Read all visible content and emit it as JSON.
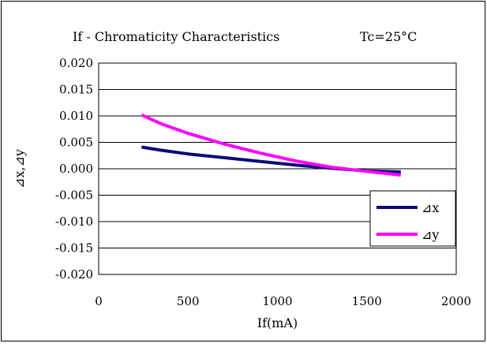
{
  "chart_data": {
    "type": "line",
    "title": "If - Chromaticity Characteristics",
    "condition": "Tc=25°C",
    "xlabel": "If(mA)",
    "ylabel": "⊿x,⊿y",
    "xlim": [
      0,
      2000
    ],
    "ylim": [
      -0.02,
      0.02
    ],
    "x_ticks": [
      0,
      500,
      1000,
      1500,
      2000
    ],
    "y_ticks": [
      0.02,
      0.015,
      0.01,
      0.005,
      0.0,
      -0.005,
      -0.01,
      -0.015,
      -0.02
    ],
    "x_tick_labels": [
      "0",
      "500",
      "1000",
      "1500",
      "2000"
    ],
    "y_tick_labels": [
      "0.020",
      "0.015",
      "0.010",
      "0.005",
      "0.000",
      "-0.005",
      "-0.010",
      "-0.015",
      "-0.020"
    ],
    "grid": "horizontal",
    "legend_position": "right",
    "series": [
      {
        "name": "⊿x",
        "color": "#0a0a78",
        "x": [
          240,
          350,
          500,
          700,
          900,
          1100,
          1300,
          1500,
          1690
        ],
        "y": [
          0.0041,
          0.0035,
          0.0028,
          0.0021,
          0.0014,
          0.0007,
          0.0001,
          -0.0004,
          -0.0006
        ]
      },
      {
        "name": "⊿y",
        "color": "#ff00ff",
        "x": [
          240,
          350,
          500,
          700,
          900,
          1100,
          1300,
          1500,
          1690
        ],
        "y": [
          0.0102,
          0.0085,
          0.0067,
          0.0047,
          0.003,
          0.0015,
          0.0003,
          -0.0005,
          -0.0012
        ]
      }
    ]
  }
}
